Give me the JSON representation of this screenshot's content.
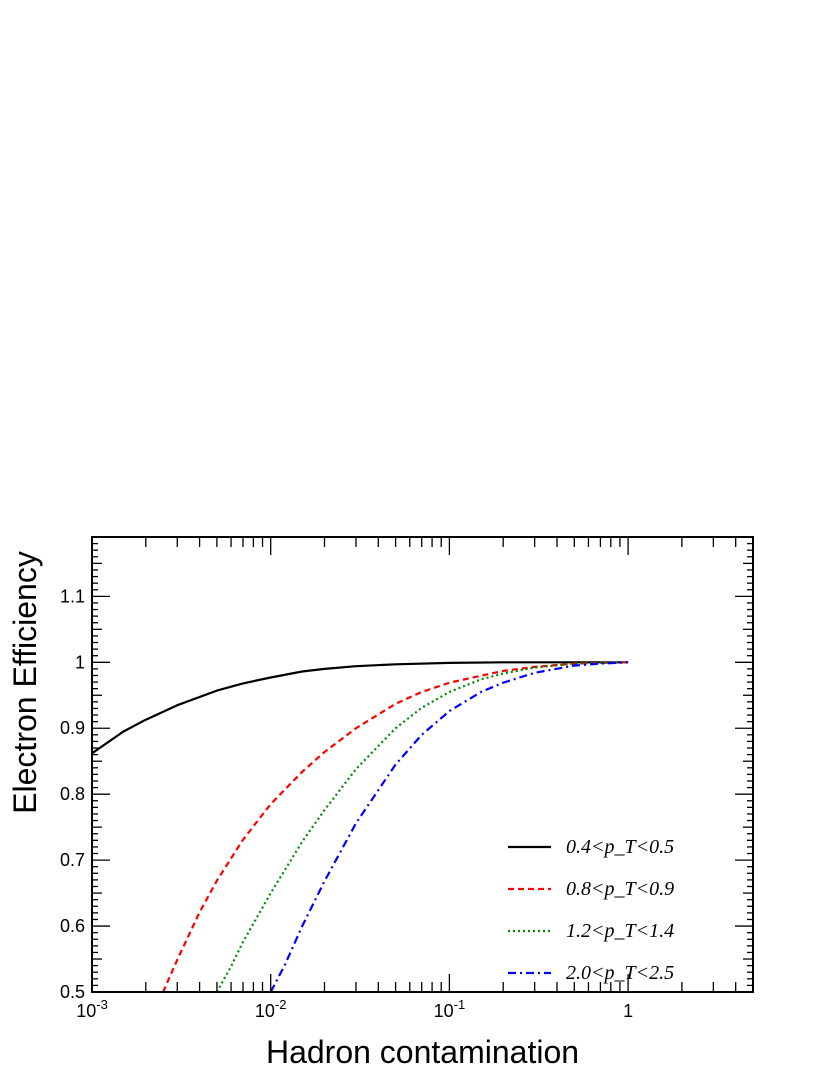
{
  "chart_data": {
    "type": "line",
    "title": "",
    "xlabel": "Hadron contamination",
    "ylabel": "Electron Efficiency",
    "xscale": "log",
    "xlim": [
      0.001,
      5
    ],
    "ylim": [
      0.5,
      1.19
    ],
    "grid": false,
    "legend_position": "bottom-right",
    "x_ticks": [
      {
        "value": 0.001,
        "base": "10",
        "exp": "-3"
      },
      {
        "value": 0.01,
        "base": "10",
        "exp": "-2"
      },
      {
        "value": 0.1,
        "base": "10",
        "exp": "-1"
      },
      {
        "value": 1,
        "base": "1",
        "exp": ""
      }
    ],
    "y_ticks": [
      {
        "value": 0.5,
        "label": "0.5"
      },
      {
        "value": 0.6,
        "label": "0.6"
      },
      {
        "value": 0.7,
        "label": "0.7"
      },
      {
        "value": 0.8,
        "label": "0.8"
      },
      {
        "value": 0.9,
        "label": "0.9"
      },
      {
        "value": 1.0,
        "label": "1"
      },
      {
        "value": 1.1,
        "label": "1.1"
      }
    ],
    "series": [
      {
        "name": "0.4<p_T<0.5",
        "color": "#000000",
        "dash": "solid",
        "x": [
          0.001,
          0.0015,
          0.002,
          0.003,
          0.005,
          0.007,
          0.01,
          0.015,
          0.02,
          0.03,
          0.05,
          0.1,
          0.2,
          0.5,
          1.0
        ],
        "y": [
          0.862,
          0.895,
          0.913,
          0.935,
          0.957,
          0.968,
          0.977,
          0.986,
          0.99,
          0.994,
          0.997,
          0.999,
          1.0,
          1.0,
          1.0
        ]
      },
      {
        "name": "0.8<p_T<0.9",
        "color": "#ff0000",
        "dash": "dashed",
        "x": [
          0.0025,
          0.003,
          0.004,
          0.005,
          0.007,
          0.01,
          0.015,
          0.02,
          0.03,
          0.05,
          0.07,
          0.1,
          0.2,
          0.3,
          0.5,
          1.0
        ],
        "y": [
          0.5,
          0.549,
          0.621,
          0.669,
          0.731,
          0.785,
          0.834,
          0.864,
          0.9,
          0.937,
          0.955,
          0.969,
          0.987,
          0.993,
          0.998,
          1.0
        ]
      },
      {
        "name": "1.2<p_T<1.4",
        "color": "#008800",
        "dash": "dotted",
        "x": [
          0.005,
          0.006,
          0.007,
          0.01,
          0.015,
          0.02,
          0.03,
          0.05,
          0.07,
          0.1,
          0.15,
          0.2,
          0.3,
          0.5,
          1.0
        ],
        "y": [
          0.5,
          0.539,
          0.576,
          0.65,
          0.728,
          0.776,
          0.838,
          0.9,
          0.931,
          0.955,
          0.974,
          0.983,
          0.992,
          0.998,
          1.0
        ]
      },
      {
        "name": "2.0<p_T<2.5",
        "color": "#0000ff",
        "dash": "dashdot",
        "x": [
          0.01,
          0.012,
          0.015,
          0.02,
          0.03,
          0.05,
          0.07,
          0.1,
          0.15,
          0.2,
          0.3,
          0.5,
          0.7,
          1.0
        ],
        "y": [
          0.5,
          0.541,
          0.6,
          0.668,
          0.756,
          0.845,
          0.89,
          0.926,
          0.955,
          0.969,
          0.984,
          0.995,
          0.998,
          1.0
        ]
      }
    ]
  }
}
